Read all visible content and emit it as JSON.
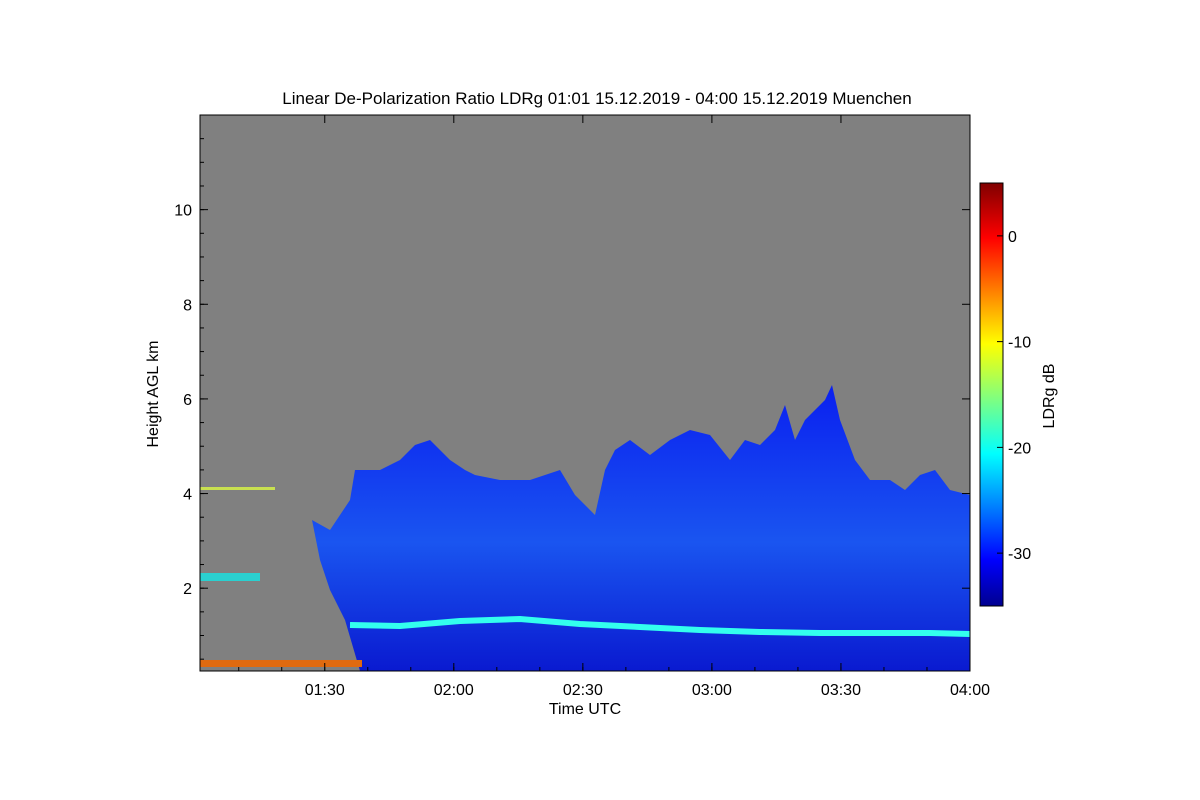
{
  "chart_data": {
    "type": "heatmap",
    "title": "Linear De-Polarization Ratio LDRg   01:01 15.12.2019 - 04:00 15.12.2019 Muenchen",
    "xlabel": "Time UTC",
    "ylabel": "Height AGL km",
    "x_range": [
      "01:01",
      "04:00"
    ],
    "x_ticks": [
      "01:30",
      "02:00",
      "02:30",
      "03:00",
      "03:30",
      "04:00"
    ],
    "y_range": [
      0.25,
      12.0
    ],
    "y_ticks": [
      2,
      4,
      6,
      8,
      10
    ],
    "colorbar": {
      "label": "LDRg dB",
      "range": [
        -35,
        5
      ],
      "ticks": [
        0,
        -10,
        -20,
        -30
      ],
      "colormap": "jet"
    },
    "background_color": "#808080",
    "features": [
      {
        "type": "layer",
        "description": "melting layer / bright band",
        "height_km": 1.2,
        "ldr_db": -20
      },
      {
        "type": "cloud",
        "top_km_range": [
          3.5,
          6.5
        ],
        "ldr_db_range": [
          -32,
          -24
        ]
      }
    ]
  }
}
